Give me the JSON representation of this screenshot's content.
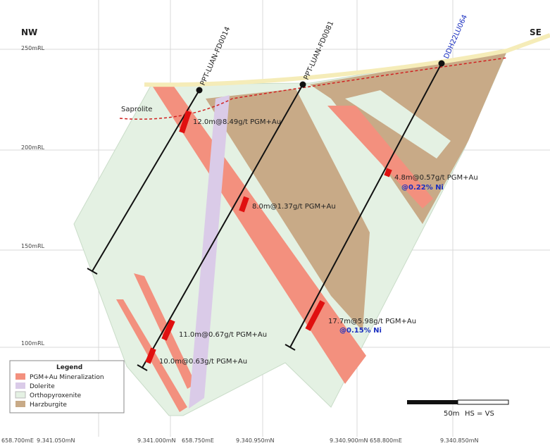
{
  "compass": {
    "left": "NW",
    "right": "SE"
  },
  "elevations": [
    "250mRL",
    "200mRL",
    "150mRL",
    "100mRL"
  ],
  "saprolite": "Saprolite",
  "drillholes": [
    "PPT-LUAN-FD0014",
    "PPT-LUAN-FD0081",
    "DDH22LU064"
  ],
  "intercepts": [
    {
      "text": "12.0m@8.49g/t PGM+Au"
    },
    {
      "text": "8.0m@1.37g/t PGM+Au"
    },
    {
      "text": "4.8m@0.57g/t PGM+Au",
      "ni": "@0.22% Ni"
    },
    {
      "text": "11.0m@0.67g/t PGM+Au"
    },
    {
      "text": "10.0m@0.63g/t PGM+Au"
    },
    {
      "text": "17.7m@5.98g/t PGM+Au",
      "ni": "@0.15% Ni"
    }
  ],
  "legend": {
    "title": "Legend",
    "items": [
      "PGM+Au Mineralization",
      "Dolerite",
      "Orthopyroxenite",
      "Harzburgite"
    ]
  },
  "scale": {
    "length": "50m",
    "ratio": "HS = VS"
  },
  "coordinates": [
    "658.700mE",
    "9.341.050mN",
    "9.341.000mN",
    "658.750mE",
    "9.340.950mN",
    "9.340.900mN",
    "658.800mE",
    "9.340.850mN"
  ]
}
